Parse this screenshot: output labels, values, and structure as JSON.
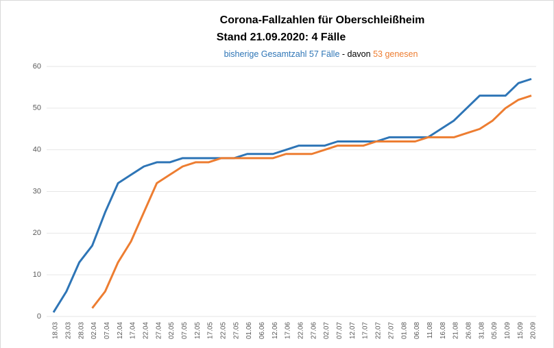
{
  "chart_data": {
    "type": "line",
    "title": "Corona-Fallzahlen für Oberschleißheim",
    "subtitle": "Stand 21.09.2020: 4 Fälle",
    "subtitle_joiner": "- davon",
    "categories": [
      "18.03",
      "23.03",
      "28.03",
      "02.04",
      "07.04",
      "12.04",
      "17.04",
      "22.04",
      "27.04",
      "02.05",
      "07.05",
      "12.05",
      "17.05",
      "22.05",
      "27.05",
      "01.06",
      "06.06",
      "12.06",
      "17.06",
      "22.06",
      "27.06",
      "02.07",
      "07.07",
      "12.07",
      "17.07",
      "22.07",
      "27.07",
      "01.08",
      "06.08",
      "11.08",
      "16.08",
      "21.08",
      "26.08",
      "31.08",
      "05.09",
      "10.09",
      "15.09",
      "20.09"
    ],
    "series": [
      {
        "name": "bisherige Gesamtzahl 57 Fälle",
        "color": "#2e75b6",
        "values": [
          1,
          6,
          13,
          17,
          25,
          32,
          34,
          36,
          37,
          37,
          38,
          38,
          38,
          38,
          38,
          39,
          39,
          39,
          40,
          41,
          41,
          41,
          42,
          42,
          42,
          42,
          43,
          43,
          43,
          43,
          45,
          47,
          50,
          53,
          53,
          53,
          56,
          57
        ]
      },
      {
        "name": "53 genesen",
        "color": "#ed7d31",
        "values": [
          null,
          null,
          null,
          2,
          6,
          13,
          18,
          25,
          32,
          34,
          36,
          37,
          37,
          38,
          38,
          38,
          38,
          38,
          39,
          39,
          39,
          40,
          41,
          41,
          41,
          42,
          42,
          42,
          42,
          43,
          43,
          43,
          44,
          45,
          47,
          50,
          52,
          53
        ]
      }
    ],
    "ylim": [
      0,
      60
    ],
    "yticks": [
      0,
      10,
      20,
      30,
      40,
      50,
      60
    ],
    "grid": true
  }
}
